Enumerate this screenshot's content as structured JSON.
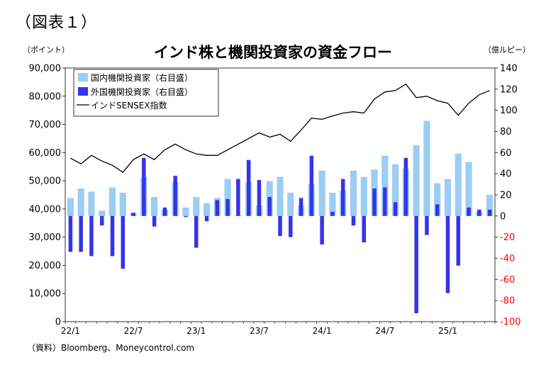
{
  "header": {
    "figure_label": "（図表１）",
    "left_unit": "（ポイント）",
    "right_unit": "（億ルピー）",
    "source": "（資料）Bloomberg、Moneycontrol.com"
  },
  "colors": {
    "domestic": "#9ccdf4",
    "foreign": "#3434ea",
    "sensex": "#000000",
    "negative_axis": "#ff0000"
  },
  "chart_data": {
    "type": "bar",
    "title": "インド株と機関投資家の資金フロー",
    "x": [
      "22/1",
      "22/2",
      "22/3",
      "22/4",
      "22/5",
      "22/6",
      "22/7",
      "22/8",
      "22/9",
      "22/10",
      "22/11",
      "22/12",
      "23/1",
      "23/2",
      "23/3",
      "23/4",
      "23/5",
      "23/6",
      "23/7",
      "23/8",
      "23/9",
      "23/10",
      "23/11",
      "23/12",
      "24/1",
      "24/2",
      "24/3",
      "24/4",
      "24/5",
      "24/6",
      "24/7",
      "24/8",
      "24/9",
      "24/10",
      "24/11",
      "24/12",
      "25/1",
      "25/2",
      "25/3",
      "25/4",
      "25/5"
    ],
    "x_tick_labels": [
      "22/1",
      "22/7",
      "23/1",
      "23/7",
      "24/1",
      "24/7",
      "25/1"
    ],
    "x_tick_indices": [
      0,
      6,
      12,
      18,
      24,
      30,
      36
    ],
    "y_left": {
      "min": 0,
      "max": 90000,
      "step": 10000,
      "tick_labels": [
        "0",
        "10,000",
        "20,000",
        "30,000",
        "40,000",
        "50,000",
        "60,000",
        "70,000",
        "80,000",
        "90,000"
      ]
    },
    "y_right": {
      "min": -100,
      "max": 140,
      "step": 20,
      "tick_labels": [
        "-100",
        "-80",
        "-60",
        "-40",
        "-20",
        "0",
        "20",
        "40",
        "60",
        "80",
        "100",
        "120",
        "140"
      ]
    },
    "series": [
      {
        "name": "国内機関投資家（右目盛）",
        "type": "bar",
        "axis": "right",
        "values": [
          17,
          26,
          23,
          5,
          27,
          22,
          3,
          37,
          18,
          6,
          32,
          8,
          18,
          12,
          17,
          35,
          1,
          32,
          10,
          33,
          37,
          22,
          10,
          30,
          43,
          22,
          24,
          43,
          37,
          44,
          57,
          49,
          45,
          67,
          90,
          31,
          35,
          59,
          51,
          4,
          20
        ]
      },
      {
        "name": "外国機関投資家（右目盛）",
        "type": "bar",
        "axis": "right",
        "values": [
          -34,
          -34,
          -38,
          -9,
          -38,
          -50,
          3,
          55,
          -10,
          8,
          38,
          -1,
          -30,
          -5,
          15,
          16,
          35,
          53,
          34,
          18,
          -19,
          -20,
          17,
          57,
          -27,
          4,
          35,
          -9,
          -25,
          26,
          27,
          13,
          55,
          -92,
          -18,
          11,
          -73,
          -47,
          8,
          6,
          6
        ]
      },
      {
        "name": "インドSENSEX指数",
        "type": "line",
        "axis": "left",
        "values": [
          58000,
          56000,
          59000,
          57000,
          55500,
          53000,
          57500,
          59500,
          57500,
          61000,
          63000,
          61000,
          59500,
          59000,
          59000,
          61000,
          63000,
          65000,
          67000,
          65500,
          66500,
          64000,
          68000,
          72200,
          71800,
          73000,
          74000,
          74500,
          74000,
          79000,
          81500,
          82000,
          84300,
          79500,
          80000,
          78400,
          77500,
          73200,
          77500,
          80500,
          82000
        ]
      }
    ],
    "legend_position": "top-left"
  }
}
